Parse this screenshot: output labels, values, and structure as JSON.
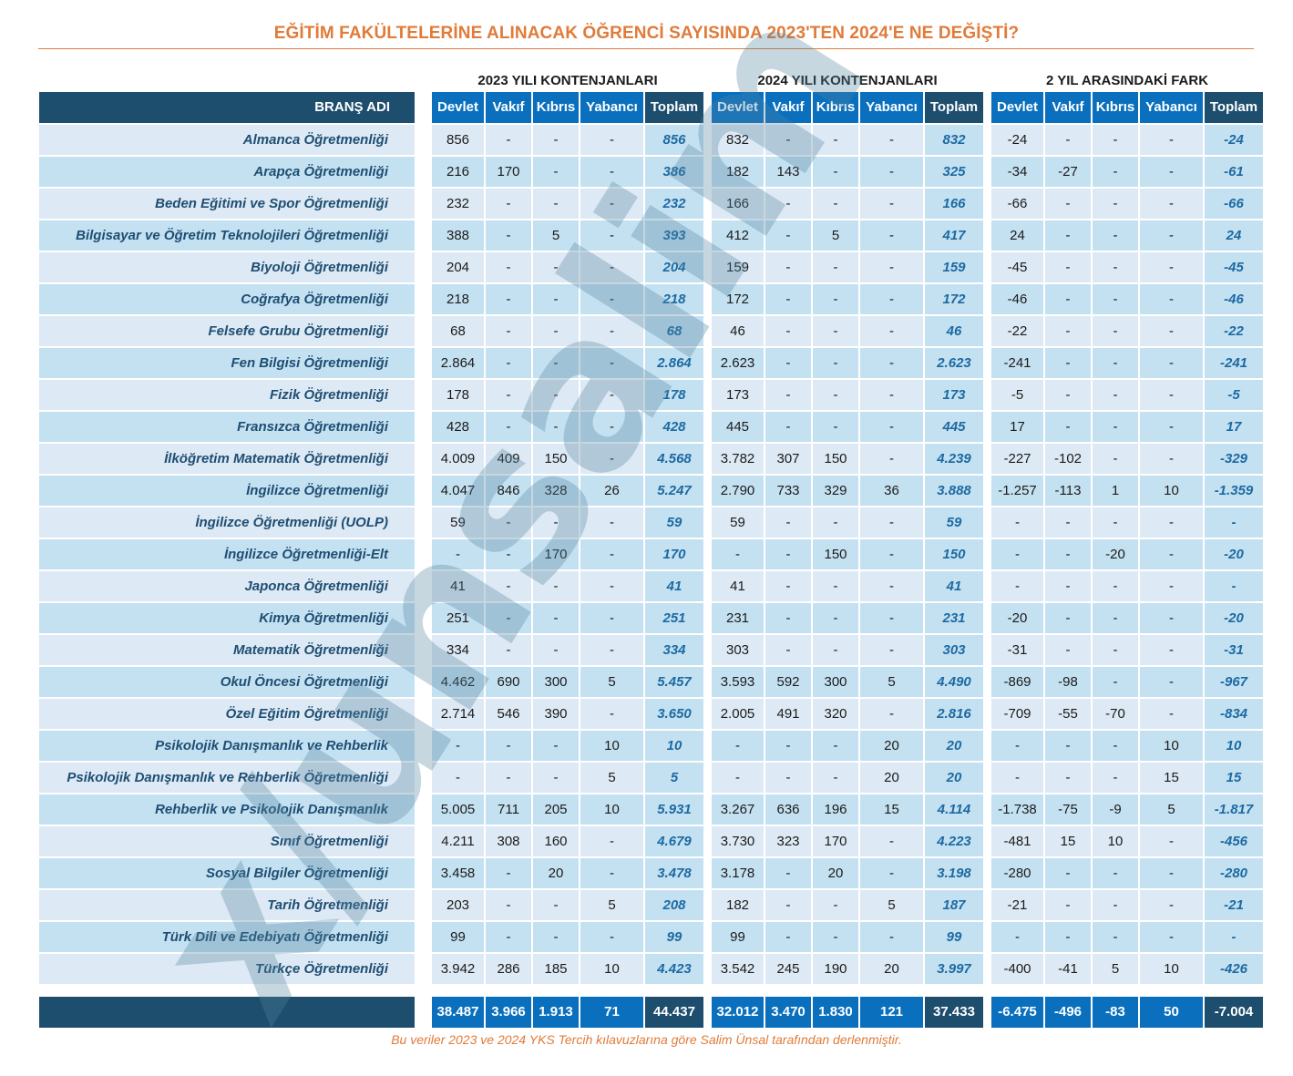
{
  "title": "EĞİTİM FAKÜLTELERİNE ALINACAK ÖĞRENCİ SAYISINDA 2023'TEN 2024'E NE DEĞİŞTİ?",
  "groups": [
    "2023 YILI KONTENJANLARI",
    "2024 YILI KONTENJANLARI",
    "2 YIL ARASINDAKİ FARK"
  ],
  "branch_header": "BRANŞ ADI",
  "col_headers": [
    "Devlet",
    "Vakıf",
    "Kıbrıs",
    "Yabancı",
    "Toplam"
  ],
  "rows": [
    {
      "name": "Almanca Öğretmenliği",
      "y2023": [
        "856",
        "-",
        "-",
        "-",
        "856"
      ],
      "y2024": [
        "832",
        "-",
        "-",
        "-",
        "832"
      ],
      "diff": [
        "-24",
        "-",
        "-",
        "-",
        "-24"
      ]
    },
    {
      "name": "Arapça Öğretmenliği",
      "y2023": [
        "216",
        "170",
        "-",
        "-",
        "386"
      ],
      "y2024": [
        "182",
        "143",
        "-",
        "-",
        "325"
      ],
      "diff": [
        "-34",
        "-27",
        "-",
        "-",
        "-61"
      ]
    },
    {
      "name": "Beden Eğitimi ve Spor Öğretmenliği",
      "y2023": [
        "232",
        "-",
        "-",
        "-",
        "232"
      ],
      "y2024": [
        "166",
        "-",
        "-",
        "-",
        "166"
      ],
      "diff": [
        "-66",
        "-",
        "-",
        "-",
        "-66"
      ]
    },
    {
      "name": "Bilgisayar ve Öğretim Teknolojileri Öğretmenliği",
      "y2023": [
        "388",
        "-",
        "5",
        "-",
        "393"
      ],
      "y2024": [
        "412",
        "-",
        "5",
        "-",
        "417"
      ],
      "diff": [
        "24",
        "-",
        "-",
        "-",
        "24"
      ]
    },
    {
      "name": "Biyoloji Öğretmenliği",
      "y2023": [
        "204",
        "-",
        "-",
        "-",
        "204"
      ],
      "y2024": [
        "159",
        "-",
        "-",
        "-",
        "159"
      ],
      "diff": [
        "-45",
        "-",
        "-",
        "-",
        "-45"
      ]
    },
    {
      "name": "Coğrafya Öğretmenliği",
      "y2023": [
        "218",
        "-",
        "-",
        "-",
        "218"
      ],
      "y2024": [
        "172",
        "-",
        "-",
        "-",
        "172"
      ],
      "diff": [
        "-46",
        "-",
        "-",
        "-",
        "-46"
      ]
    },
    {
      "name": "Felsefe Grubu Öğretmenliği",
      "y2023": [
        "68",
        "-",
        "-",
        "-",
        "68"
      ],
      "y2024": [
        "46",
        "-",
        "-",
        "-",
        "46"
      ],
      "diff": [
        "-22",
        "-",
        "-",
        "-",
        "-22"
      ]
    },
    {
      "name": "Fen Bilgisi Öğretmenliği",
      "y2023": [
        "2.864",
        "-",
        "-",
        "-",
        "2.864"
      ],
      "y2024": [
        "2.623",
        "-",
        "-",
        "-",
        "2.623"
      ],
      "diff": [
        "-241",
        "-",
        "-",
        "-",
        "-241"
      ]
    },
    {
      "name": "Fizik Öğretmenliği",
      "y2023": [
        "178",
        "-",
        "-",
        "-",
        "178"
      ],
      "y2024": [
        "173",
        "-",
        "-",
        "-",
        "173"
      ],
      "diff": [
        "-5",
        "-",
        "-",
        "-",
        "-5"
      ]
    },
    {
      "name": "Fransızca Öğretmenliği",
      "y2023": [
        "428",
        "-",
        "-",
        "-",
        "428"
      ],
      "y2024": [
        "445",
        "-",
        "-",
        "-",
        "445"
      ],
      "diff": [
        "17",
        "-",
        "-",
        "-",
        "17"
      ]
    },
    {
      "name": "İlköğretim Matematik Öğretmenliği",
      "y2023": [
        "4.009",
        "409",
        "150",
        "-",
        "4.568"
      ],
      "y2024": [
        "3.782",
        "307",
        "150",
        "-",
        "4.239"
      ],
      "diff": [
        "-227",
        "-102",
        "-",
        "-",
        "-329"
      ]
    },
    {
      "name": "İngilizce Öğretmenliği",
      "y2023": [
        "4.047",
        "846",
        "328",
        "26",
        "5.247"
      ],
      "y2024": [
        "2.790",
        "733",
        "329",
        "36",
        "3.888"
      ],
      "diff": [
        "-1.257",
        "-113",
        "1",
        "10",
        "-1.359"
      ]
    },
    {
      "name": "İngilizce Öğretmenliği (UOLP)",
      "y2023": [
        "59",
        "-",
        "-",
        "-",
        "59"
      ],
      "y2024": [
        "59",
        "-",
        "-",
        "-",
        "59"
      ],
      "diff": [
        "-",
        "-",
        "-",
        "-",
        "-"
      ]
    },
    {
      "name": "İngilizce Öğretmenliği-Elt",
      "y2023": [
        "-",
        "-",
        "170",
        "-",
        "170"
      ],
      "y2024": [
        "-",
        "-",
        "150",
        "-",
        "150"
      ],
      "diff": [
        "-",
        "-",
        "-20",
        "-",
        "-20"
      ]
    },
    {
      "name": "Japonca Öğretmenliği",
      "y2023": [
        "41",
        "-",
        "-",
        "-",
        "41"
      ],
      "y2024": [
        "41",
        "-",
        "-",
        "-",
        "41"
      ],
      "diff": [
        "-",
        "-",
        "-",
        "-",
        "-"
      ]
    },
    {
      "name": "Kimya Öğretmenliği",
      "y2023": [
        "251",
        "-",
        "-",
        "-",
        "251"
      ],
      "y2024": [
        "231",
        "-",
        "-",
        "-",
        "231"
      ],
      "diff": [
        "-20",
        "-",
        "-",
        "-",
        "-20"
      ]
    },
    {
      "name": "Matematik Öğretmenliği",
      "y2023": [
        "334",
        "-",
        "-",
        "-",
        "334"
      ],
      "y2024": [
        "303",
        "-",
        "-",
        "-",
        "303"
      ],
      "diff": [
        "-31",
        "-",
        "-",
        "-",
        "-31"
      ]
    },
    {
      "name": "Okul Öncesi Öğretmenliği",
      "y2023": [
        "4.462",
        "690",
        "300",
        "5",
        "5.457"
      ],
      "y2024": [
        "3.593",
        "592",
        "300",
        "5",
        "4.490"
      ],
      "diff": [
        "-869",
        "-98",
        "-",
        "-",
        "-967"
      ]
    },
    {
      "name": "Özel Eğitim Öğretmenliği",
      "y2023": [
        "2.714",
        "546",
        "390",
        "-",
        "3.650"
      ],
      "y2024": [
        "2.005",
        "491",
        "320",
        "-",
        "2.816"
      ],
      "diff": [
        "-709",
        "-55",
        "-70",
        "-",
        "-834"
      ]
    },
    {
      "name": "Psikolojik Danışmanlık ve Rehberlik",
      "y2023": [
        "-",
        "-",
        "-",
        "10",
        "10"
      ],
      "y2024": [
        "-",
        "-",
        "-",
        "20",
        "20"
      ],
      "diff": [
        "-",
        "-",
        "-",
        "10",
        "10"
      ]
    },
    {
      "name": "Psikolojik Danışmanlık ve Rehberlik Öğretmenliği",
      "y2023": [
        "-",
        "-",
        "-",
        "5",
        "5"
      ],
      "y2024": [
        "-",
        "-",
        "-",
        "20",
        "20"
      ],
      "diff": [
        "-",
        "-",
        "-",
        "15",
        "15"
      ]
    },
    {
      "name": "Rehberlik ve Psikolojik Danışmanlık",
      "y2023": [
        "5.005",
        "711",
        "205",
        "10",
        "5.931"
      ],
      "y2024": [
        "3.267",
        "636",
        "196",
        "15",
        "4.114"
      ],
      "diff": [
        "-1.738",
        "-75",
        "-9",
        "5",
        "-1.817"
      ]
    },
    {
      "name": "Sınıf Öğretmenliği",
      "y2023": [
        "4.211",
        "308",
        "160",
        "-",
        "4.679"
      ],
      "y2024": [
        "3.730",
        "323",
        "170",
        "-",
        "4.223"
      ],
      "diff": [
        "-481",
        "15",
        "10",
        "-",
        "-456"
      ]
    },
    {
      "name": "Sosyal Bilgiler Öğretmenliği",
      "y2023": [
        "3.458",
        "-",
        "20",
        "-",
        "3.478"
      ],
      "y2024": [
        "3.178",
        "-",
        "20",
        "-",
        "3.198"
      ],
      "diff": [
        "-280",
        "-",
        "-",
        "-",
        "-280"
      ]
    },
    {
      "name": "Tarih Öğretmenliği",
      "y2023": [
        "203",
        "-",
        "-",
        "5",
        "208"
      ],
      "y2024": [
        "182",
        "-",
        "-",
        "5",
        "187"
      ],
      "diff": [
        "-21",
        "-",
        "-",
        "-",
        "-21"
      ]
    },
    {
      "name": "Türk Dili ve Edebiyatı Öğretmenliği",
      "y2023": [
        "99",
        "-",
        "-",
        "-",
        "99"
      ],
      "y2024": [
        "99",
        "-",
        "-",
        "-",
        "99"
      ],
      "diff": [
        "-",
        "-",
        "-",
        "-",
        "-"
      ]
    },
    {
      "name": "Türkçe Öğretmenliği",
      "y2023": [
        "3.942",
        "286",
        "185",
        "10",
        "4.423"
      ],
      "y2024": [
        "3.542",
        "245",
        "190",
        "20",
        "3.997"
      ],
      "diff": [
        "-400",
        "-41",
        "5",
        "10",
        "-426"
      ]
    }
  ],
  "totals": {
    "y2023": [
      "38.487",
      "3.966",
      "1.913",
      "71",
      "44.437"
    ],
    "y2024": [
      "32.012",
      "3.470",
      "1.830",
      "121",
      "37.433"
    ],
    "diff": [
      "-6.475",
      "-496",
      "-83",
      "50",
      "-7.004"
    ]
  },
  "footer": "Bu veriler 2023 ve 2024 YKS Tercih kılavuzlarına göre Salim Ünsal tarafından derlenmiştir.",
  "watermark": "x/unsalim",
  "colors": {
    "header_dark": "#1e4e6e",
    "header_blue": "#0a70be",
    "accent_orange": "#e07b39",
    "row_light": "#dde9f4",
    "row_mid": "#c4e1f1"
  }
}
